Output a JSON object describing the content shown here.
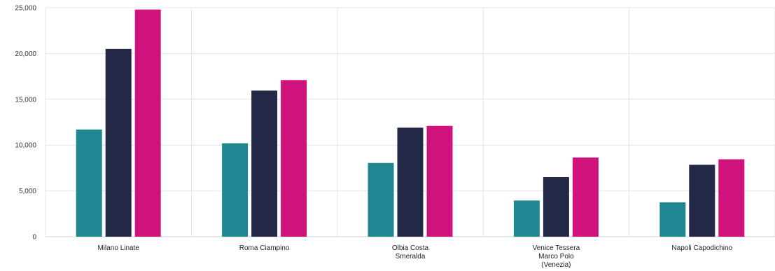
{
  "chart_data": {
    "type": "bar",
    "title": "",
    "xlabel": "",
    "ylabel": "",
    "categories": [
      [
        "Milano Linate"
      ],
      [
        "Roma Ciampino"
      ],
      [
        "Olbia Costa",
        "Smeralda"
      ],
      [
        "Venice Tessera",
        "Marco Polo",
        "(Venezia)"
      ],
      [
        "Napoli Capodichino"
      ]
    ],
    "series": [
      {
        "color": "#1f8790",
        "values": [
          11700,
          10200,
          8050,
          3950,
          3750
        ]
      },
      {
        "color": "#222846",
        "values": [
          20500,
          15950,
          11900,
          6500,
          7850
        ]
      },
      {
        "color": "#d0127c",
        "values": [
          24800,
          17100,
          12100,
          8650,
          8450
        ]
      }
    ],
    "ylim": [
      0,
      25000
    ],
    "yticks": [
      "0",
      "5,000",
      "10,000",
      "15,000",
      "20,000",
      "25,000"
    ],
    "grid": true,
    "legend": "none"
  }
}
